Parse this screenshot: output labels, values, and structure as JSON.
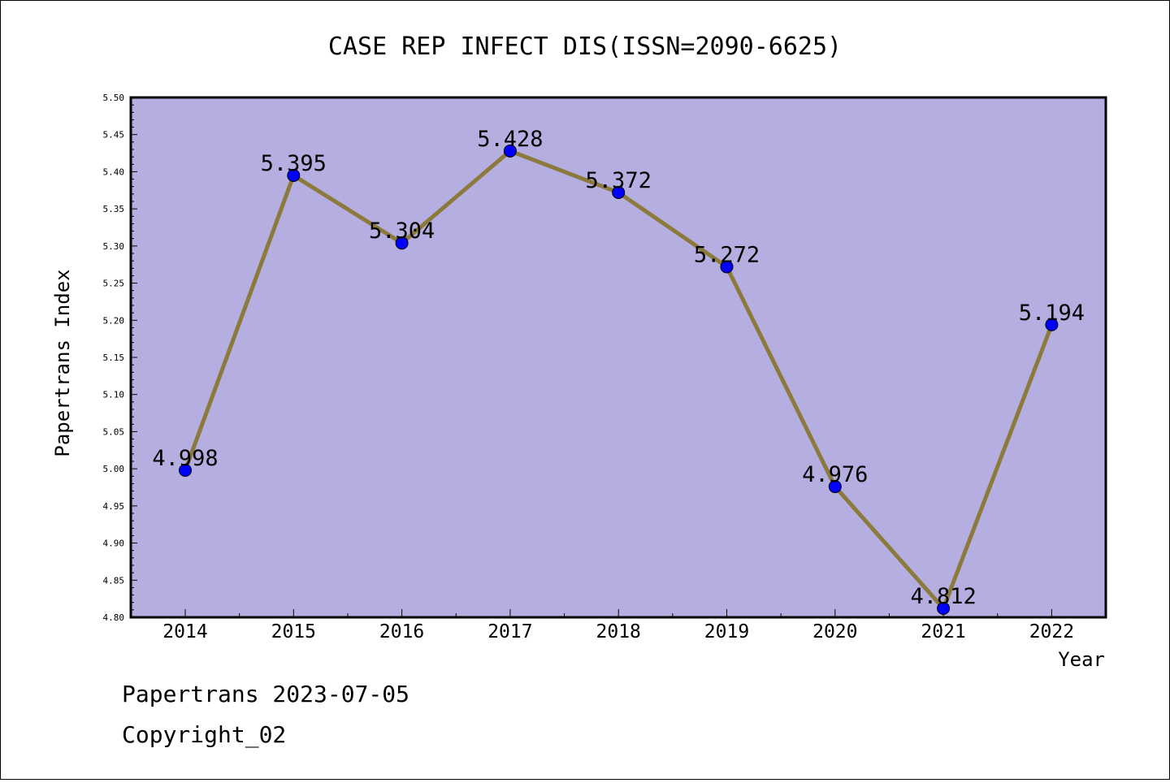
{
  "chart_data": {
    "type": "line",
    "title": "CASE REP INFECT DIS(ISSN=2090-6625)",
    "xlabel": "Year",
    "ylabel": "Papertrans Index",
    "categories": [
      "2014",
      "2015",
      "2016",
      "2017",
      "2018",
      "2019",
      "2020",
      "2021",
      "2022"
    ],
    "values": [
      4.998,
      5.395,
      5.304,
      5.428,
      5.372,
      5.272,
      4.976,
      4.812,
      5.194
    ],
    "value_labels": [
      "4.998",
      "5.395",
      "5.304",
      "5.428",
      "5.372",
      "5.272",
      "4.976",
      "4.812",
      "5.194"
    ],
    "ylim": [
      4.8,
      5.5
    ],
    "yticks": [
      "4.80",
      "4.85",
      "4.90",
      "4.95",
      "5.00",
      "5.05",
      "5.10",
      "5.15",
      "5.20",
      "5.25",
      "5.30",
      "5.35",
      "5.40",
      "5.45",
      "5.50"
    ],
    "grid": false,
    "colors": {
      "plot_background": "#b5aee1",
      "line": "#8b7a3c",
      "marker": "#0000ff"
    }
  },
  "footer": {
    "line1": "Papertrans 2023-07-05",
    "line2": "Copyright_02"
  }
}
